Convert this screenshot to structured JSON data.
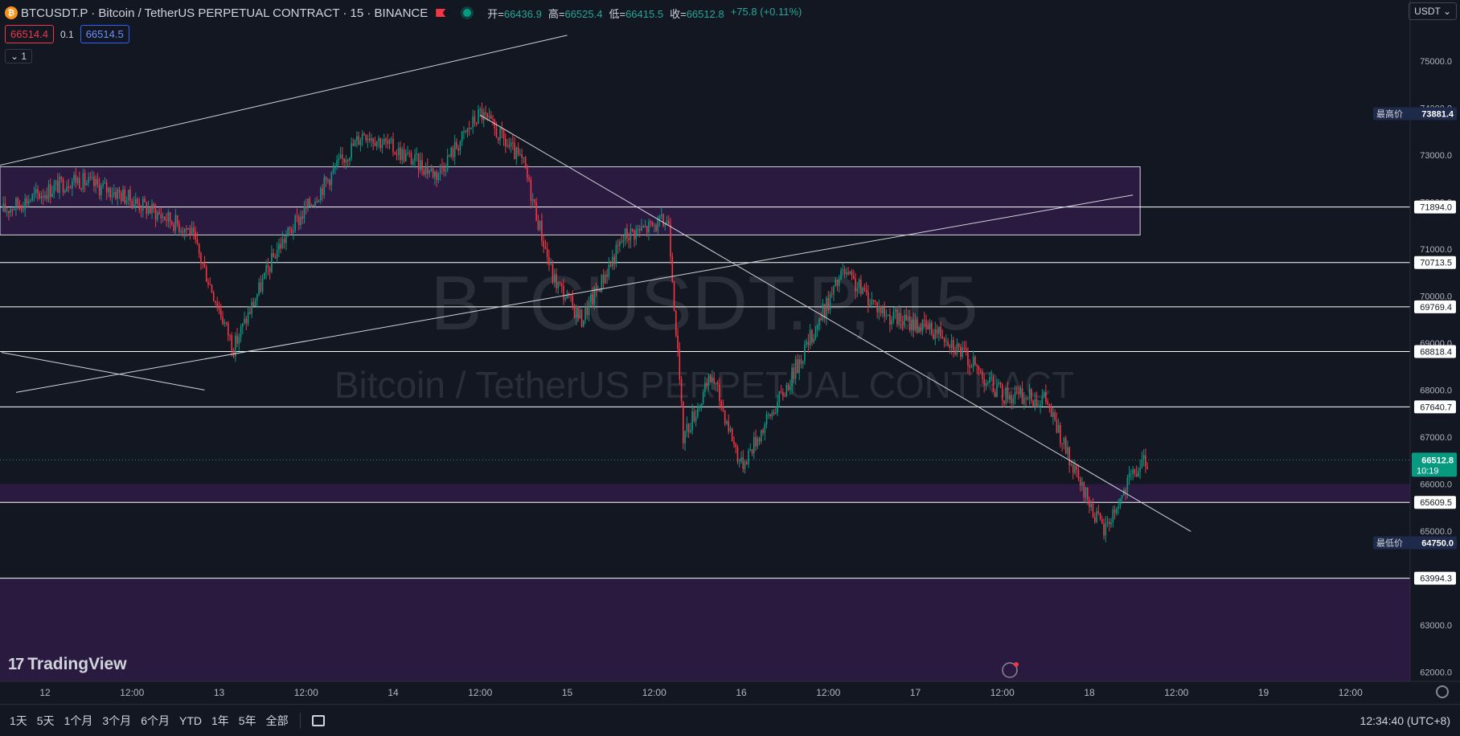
{
  "header": {
    "symbol_logo": "₿",
    "title": "BTCUSDT.P · Bitcoin / TetherUS PERPETUAL CONTRACT · 15 · BINANCE",
    "ohlc": [
      {
        "key": "开",
        "value": "66436.9"
      },
      {
        "key": "高",
        "value": "66525.4"
      },
      {
        "key": "低",
        "value": "66415.5"
      },
      {
        "key": "收",
        "value": "66512.8"
      }
    ],
    "change": "+75.8 (+0.11%)"
  },
  "trade": {
    "sell": "66514.4",
    "spread": "0.1",
    "buy": "66514.5"
  },
  "indicator_toggle": "⌄ 1",
  "currency": "USDT ⌄",
  "watermark": {
    "line1": "BTCUSDT.P, 15",
    "line2": "Bitcoin / TetherUS PERPETUAL CONTRACT"
  },
  "brand": "TradingView",
  "bottom_bar": {
    "ranges": [
      "1天",
      "5天",
      "1个月",
      "3个月",
      "6个月",
      "YTD",
      "1年",
      "5年",
      "全部"
    ],
    "clock": "12:34:40 (UTC+8)"
  },
  "colors": {
    "up": "#089981",
    "down": "#f23645",
    "zone": "#2a1a3f",
    "background": "#131722"
  },
  "chart_data": {
    "type": "candlestick",
    "interval": "15",
    "y_axis": {
      "ylim": [
        61800,
        76300
      ],
      "ticks": [
        62000,
        63000,
        64000,
        65000,
        66000,
        67000,
        68000,
        69000,
        70000,
        71000,
        72000,
        73000,
        74000,
        75000
      ]
    },
    "x_axis": {
      "labels": [
        "12",
        "12:00",
        "13",
        "12:00",
        "14",
        "12:00",
        "15",
        "12:00",
        "16",
        "12:00",
        "17",
        "12:00",
        "18",
        "12:00",
        "19",
        "12:00"
      ],
      "start": "Mar 12 00:00",
      "end": "Mar 19 23:00"
    },
    "last_price": {
      "value": "66512.8",
      "countdown": "10:19"
    },
    "high_marker": {
      "label": "最高价",
      "value": "73881.4"
    },
    "low_marker": {
      "label": "最低价",
      "value": "64750.0"
    },
    "horizontal_levels": [
      "71894.0",
      "70713.5",
      "69769.4",
      "68818.4",
      "67640.7",
      "65609.5",
      "63994.3"
    ],
    "zones": [
      {
        "from": 71300,
        "to": 72750,
        "end_x": "Mar 18 07:00"
      },
      {
        "from": 65609.5,
        "to": 66000
      },
      {
        "from": 61800,
        "to": 63994.3
      }
    ],
    "trend_lines": [
      {
        "from": [
          "Mar 11 12:00",
          72580
        ],
        "to": [
          "Mar 15 00:00",
          75550
        ]
      },
      {
        "from": [
          "Mar 11 20:00",
          67950
        ],
        "to": [
          "Mar 18 06:00",
          72150
        ]
      },
      {
        "from": [
          "Mar 14 12:00",
          73850
        ],
        "to": [
          "Mar 18 14:00",
          64990
        ]
      },
      {
        "from": [
          "Mar 11 18:00",
          68800
        ],
        "to": [
          "Mar 12 22:00",
          68000
        ]
      }
    ],
    "close_path": [
      [
        "Mar 11 18:00",
        71800
      ],
      [
        "Mar 12 04:00",
        72500
      ],
      [
        "Mar 12 10:00",
        72200
      ],
      [
        "Mar 12 20:00",
        71400
      ],
      [
        "Mar 13 02:00",
        68900
      ],
      [
        "Mar 13 08:00",
        71000
      ],
      [
        "Mar 13 16:00",
        72700
      ],
      [
        "Mar 13 20:00",
        73500
      ],
      [
        "Mar 14 06:00",
        72600
      ],
      [
        "Mar 14 12:00",
        73900
      ],
      [
        "Mar 14 18:00",
        72800
      ],
      [
        "Mar 14 22:00",
        70400
      ],
      [
        "Mar 15 02:00",
        69500
      ],
      [
        "Mar 15 08:00",
        71300
      ],
      [
        "Mar 15 14:00",
        71600
      ],
      [
        "Mar 15 16:00",
        67000
      ],
      [
        "Mar 15 20:00",
        68300
      ],
      [
        "Mar 16 00:00",
        66400
      ],
      [
        "Mar 16 06:00",
        68000
      ],
      [
        "Mar 16 14:00",
        70500
      ],
      [
        "Mar 16 20:00",
        69600
      ],
      [
        "Mar 17 04:00",
        69200
      ],
      [
        "Mar 17 10:00",
        68200
      ],
      [
        "Mar 17 12:00",
        67900
      ],
      [
        "Mar 17 18:00",
        67800
      ],
      [
        "Mar 17 22:00",
        66200
      ],
      [
        "Mar 18 02:00",
        65000
      ],
      [
        "Mar 18 06:00",
        66200
      ],
      [
        "Mar 18 08:00",
        66512.8
      ]
    ]
  }
}
